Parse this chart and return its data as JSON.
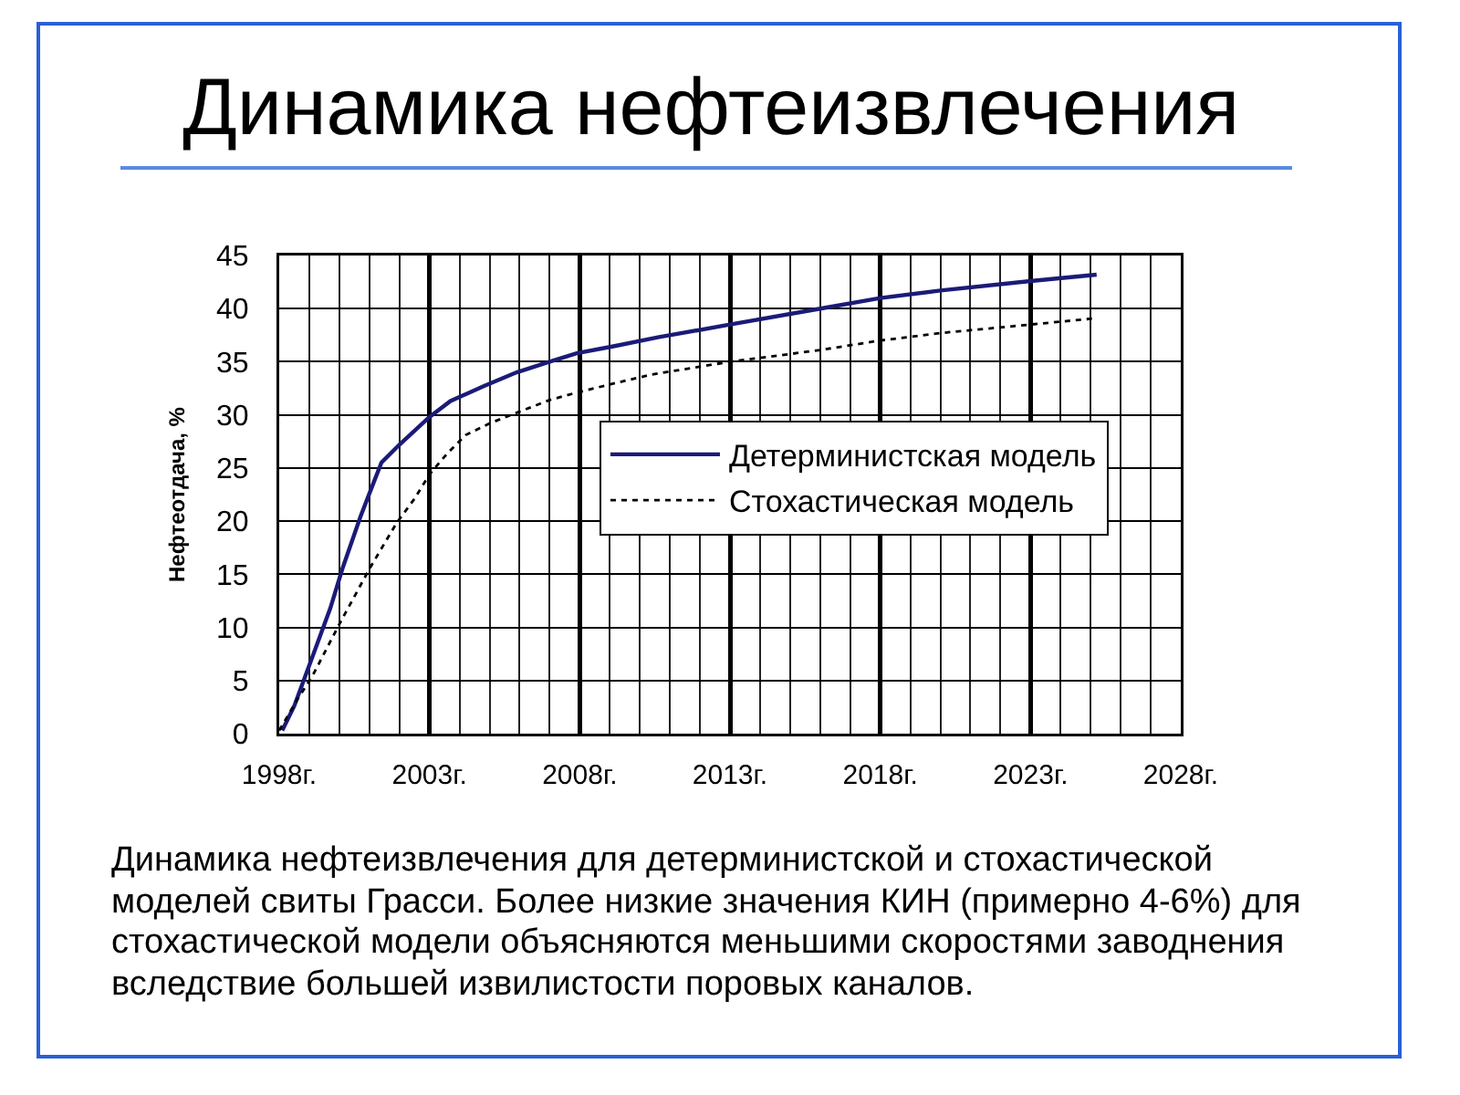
{
  "chart_data": {
    "type": "line",
    "title": "Динамика нефтеизвлечения",
    "ylabel": "Нефтеотдача, %",
    "xlim": [
      1998,
      2028
    ],
    "xticks": [
      {
        "value": 1998,
        "label": "1998г."
      },
      {
        "value": 1999,
        "label": null
      },
      {
        "value": 2000,
        "label": null
      },
      {
        "value": 2001,
        "label": null
      },
      {
        "value": 2002,
        "label": null
      },
      {
        "value": 2003,
        "label": "2003г."
      },
      {
        "value": 2004,
        "label": null
      },
      {
        "value": 2005,
        "label": null
      },
      {
        "value": 2006,
        "label": null
      },
      {
        "value": 2007,
        "label": null
      },
      {
        "value": 2008,
        "label": "2008г."
      },
      {
        "value": 2009,
        "label": null
      },
      {
        "value": 2010,
        "label": null
      },
      {
        "value": 2011,
        "label": null
      },
      {
        "value": 2012,
        "label": null
      },
      {
        "value": 2013,
        "label": "2013г."
      },
      {
        "value": 2014,
        "label": null
      },
      {
        "value": 2015,
        "label": null
      },
      {
        "value": 2016,
        "label": null
      },
      {
        "value": 2017,
        "label": null
      },
      {
        "value": 2018,
        "label": "2018г."
      },
      {
        "value": 2019,
        "label": null
      },
      {
        "value": 2020,
        "label": null
      },
      {
        "value": 2021,
        "label": null
      },
      {
        "value": 2022,
        "label": null
      },
      {
        "value": 2023,
        "label": "2023г."
      },
      {
        "value": 2024,
        "label": null
      },
      {
        "value": 2025,
        "label": null
      },
      {
        "value": 2026,
        "label": null
      },
      {
        "value": 2027,
        "label": null
      },
      {
        "value": 2028,
        "label": "2028г."
      }
    ],
    "ylim": [
      0,
      45
    ],
    "yticks": [
      0,
      5,
      10,
      15,
      20,
      25,
      30,
      35,
      40,
      45
    ],
    "grid": true,
    "legend": "center right",
    "series": [
      {
        "name": "Детерминистская модель",
        "color": "#1b1b78",
        "line_style": "solid",
        "x": [
          1998.1,
          1998.5,
          1999.1,
          1999.7,
          2000.1,
          2000.7,
          2001.0,
          2001.4,
          2002.0,
          2003.0,
          2003.7,
          2004.8,
          2005.9,
          2007.0,
          2007.9,
          2009.2,
          2010.6,
          2013.0,
          2016.0,
          2018.0,
          2020.0,
          2023.0,
          2025.2
        ],
        "values": [
          0.3,
          2.6,
          7.2,
          11.8,
          15.5,
          20.4,
          22.6,
          25.5,
          27.2,
          29.8,
          31.3,
          32.7,
          34.0,
          35.0,
          35.8,
          36.5,
          37.3,
          38.5,
          40.0,
          41.0,
          41.7,
          42.6,
          43.2
        ]
      },
      {
        "name": "Стохастическая модель",
        "color": "#000000",
        "line_style": "dotted",
        "x": [
          1998.0,
          1998.6,
          1999.1,
          2000.0,
          2001.0,
          2001.9,
          2002.5,
          2003.0,
          2003.6,
          2004.2,
          2005.0,
          2005.9,
          2007.0,
          2007.9,
          2009.2,
          2010.4,
          2013.0,
          2016.0,
          2018.0,
          2020.0,
          2023.0,
          2025.2
        ],
        "values": [
          0.3,
          3.2,
          5.4,
          10.3,
          15.5,
          19.8,
          22.1,
          24.4,
          26.4,
          28.1,
          29.2,
          30.2,
          31.4,
          32.1,
          33.0,
          33.8,
          35.0,
          36.1,
          37.0,
          37.7,
          38.5,
          39.1
        ]
      }
    ],
    "annotations": [
      "Динамика нефтеизвлечения для детерминистской и стохастической моделей свиты Грасси. Более низкие значения КИН (примерно 4-6%) для стохастической модели объясняются меньшими скоростями заводнения вследствие большей извилистости поровых каналов."
    ]
  }
}
